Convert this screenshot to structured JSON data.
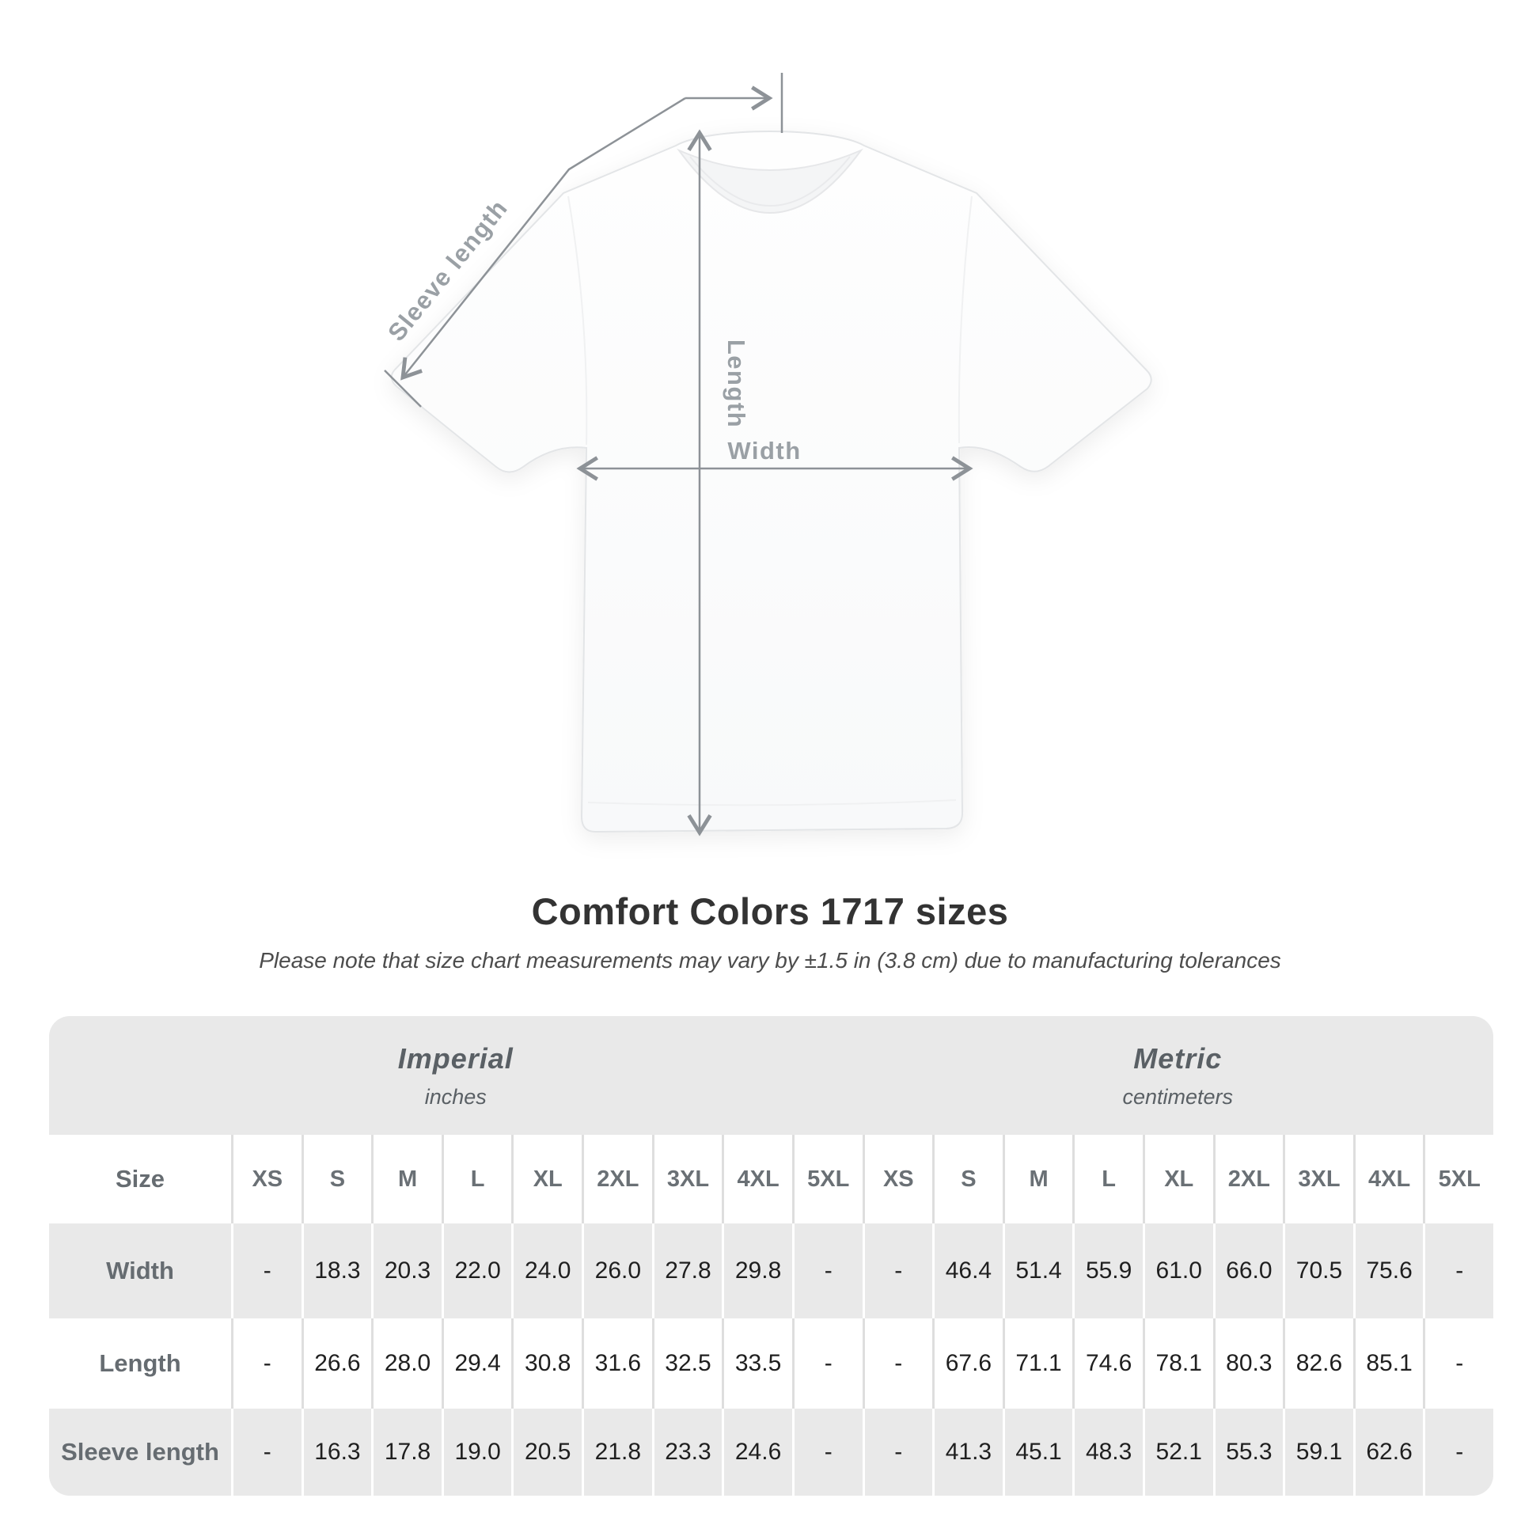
{
  "diagram": {
    "sleeve_length_label": "Sleeve length",
    "length_label": "Length",
    "width_label": "Width"
  },
  "chart_data": {
    "type": "table",
    "title": "Comfort Colors 1717 sizes",
    "note": "Please note that size chart measurements may vary by ±1.5 in (3.8 cm) due to manufacturing tolerances",
    "corner_label": "Size",
    "groups": [
      {
        "name": "Imperial",
        "units": "inches"
      },
      {
        "name": "Metric",
        "units": "centimeters"
      }
    ],
    "sizes": [
      "XS",
      "S",
      "M",
      "L",
      "XL",
      "2XL",
      "3XL",
      "4XL",
      "5XL"
    ],
    "rows": [
      {
        "label": "Width",
        "imperial": [
          "-",
          "18.3",
          "20.3",
          "22.0",
          "24.0",
          "26.0",
          "27.8",
          "29.8",
          "-"
        ],
        "metric": [
          "-",
          "46.4",
          "51.4",
          "55.9",
          "61.0",
          "66.0",
          "70.5",
          "75.6",
          "-"
        ]
      },
      {
        "label": "Length",
        "imperial": [
          "-",
          "26.6",
          "28.0",
          "29.4",
          "30.8",
          "31.6",
          "32.5",
          "33.5",
          "-"
        ],
        "metric": [
          "-",
          "67.6",
          "71.1",
          "74.6",
          "78.1",
          "80.3",
          "82.6",
          "85.1",
          "-"
        ]
      },
      {
        "label": "Sleeve length",
        "imperial": [
          "-",
          "16.3",
          "17.8",
          "19.0",
          "20.5",
          "21.8",
          "23.3",
          "24.6",
          "-"
        ],
        "metric": [
          "-",
          "41.3",
          "45.1",
          "48.3",
          "52.1",
          "55.3",
          "59.1",
          "62.6",
          "-"
        ]
      }
    ],
    "layout": {
      "row_shading": [
        "gray",
        "white",
        "gray"
      ],
      "band_color": "#e9e9e9",
      "annotation_color": "#9aa0a5",
      "value_text_color": "#1f1f1f",
      "title_text_color": "#333333"
    }
  }
}
